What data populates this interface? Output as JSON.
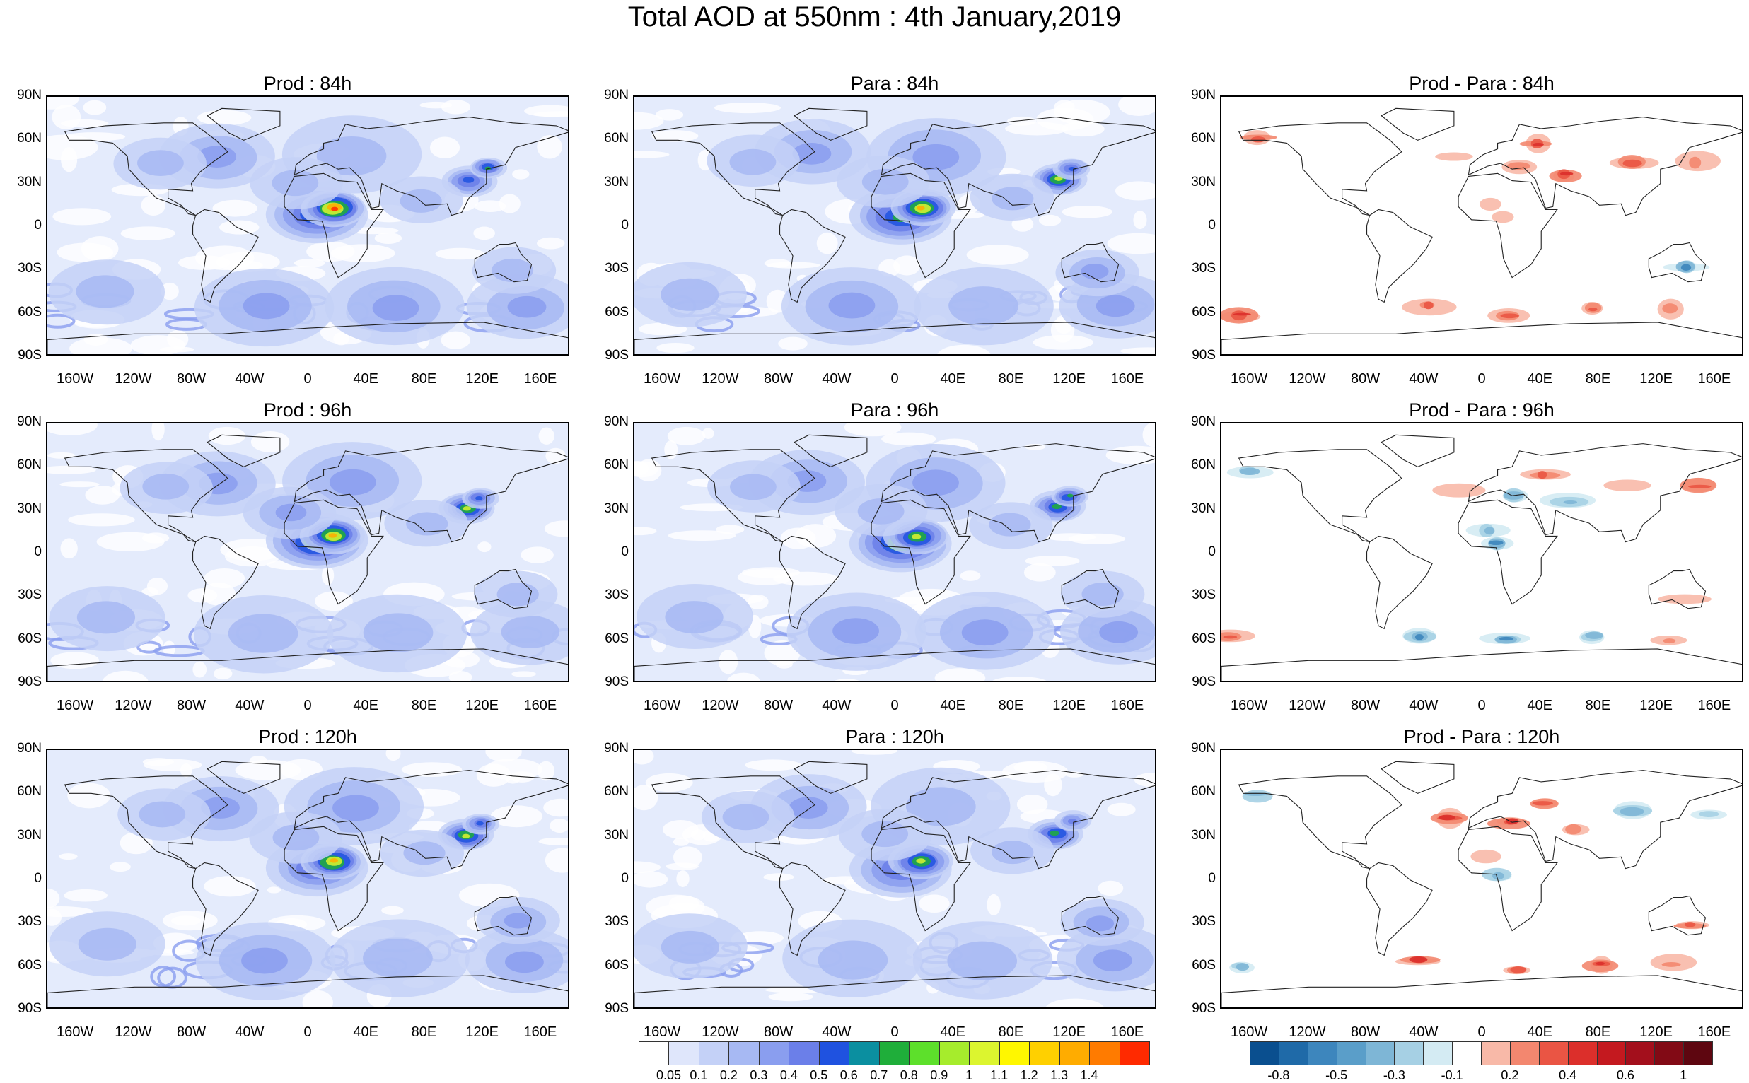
{
  "title": "Total AOD at 550nm : 4th January,2019",
  "panels": [
    {
      "title": "Prod : 84h",
      "kind": "aod",
      "seed": 11
    },
    {
      "title": "Para : 84h",
      "kind": "aod",
      "seed": 12
    },
    {
      "title": "Prod - Para : 84h",
      "kind": "diff",
      "seed": 13
    },
    {
      "title": "Prod : 96h",
      "kind": "aod",
      "seed": 21
    },
    {
      "title": "Para : 96h",
      "kind": "aod",
      "seed": 22
    },
    {
      "title": "Prod - Para : 96h",
      "kind": "diff",
      "seed": 23
    },
    {
      "title": "Prod : 120h",
      "kind": "aod",
      "seed": 31
    },
    {
      "title": "Para : 120h",
      "kind": "aod",
      "seed": 32
    },
    {
      "title": "Prod - Para : 120h",
      "kind": "diff",
      "seed": 33
    }
  ],
  "lat_labels": [
    "90N",
    "60N",
    "30N",
    "0",
    "30S",
    "60S",
    "90S"
  ],
  "lon_labels": [
    "160W",
    "120W",
    "80W",
    "40W",
    "0",
    "40E",
    "80E",
    "120E",
    "160E"
  ],
  "colorbar_aod": {
    "labels": [
      "0.05",
      "0.1",
      "0.2",
      "0.3",
      "0.4",
      "0.5",
      "0.6",
      "0.7",
      "0.8",
      "0.9",
      "1",
      "1.1",
      "1.2",
      "1.3",
      "1.4"
    ],
    "colors": [
      "#ffffff",
      "#dfe6fb",
      "#c4d1f7",
      "#a7b9f3",
      "#8a9eef",
      "#6b7fe9",
      "#1f52e0",
      "#0b8fa0",
      "#1fae3a",
      "#5de02b",
      "#a6ec2c",
      "#dcf52f",
      "#fff700",
      "#ffd000",
      "#ffac00",
      "#ff7b00",
      "#ff2a00"
    ]
  },
  "colorbar_diff": {
    "labels": [
      "-0.8",
      "-0.5",
      "-0.3",
      "-0.1",
      "0.2",
      "0.4",
      "0.6",
      "1"
    ],
    "colors": [
      "#0a4f8f",
      "#1f6aa8",
      "#3d86bd",
      "#5a9ec9",
      "#7eb6d6",
      "#a6d0e4",
      "#d4ebf3",
      "#ffffff",
      "#f8b9a8",
      "#f3876f",
      "#ea5544",
      "#dc2f2b",
      "#c4191f",
      "#a30f1c",
      "#820a15",
      "#5e0610"
    ]
  }
}
